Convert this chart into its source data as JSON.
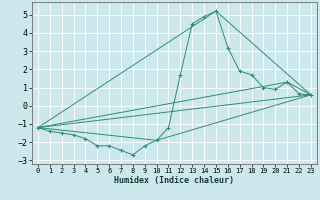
{
  "xlabel": "Humidex (Indice chaleur)",
  "xlim": [
    -0.5,
    23.5
  ],
  "ylim": [
    -3.2,
    5.7
  ],
  "yticks": [
    -3,
    -2,
    -1,
    0,
    1,
    2,
    3,
    4,
    5
  ],
  "xticks": [
    0,
    1,
    2,
    3,
    4,
    5,
    6,
    7,
    8,
    9,
    10,
    11,
    12,
    13,
    14,
    15,
    16,
    17,
    18,
    19,
    20,
    21,
    22,
    23
  ],
  "bg_color": "#cde8ec",
  "grid_color": "#ffffff",
  "line_color": "#2e8b78",
  "main_line": {
    "x": [
      0,
      1,
      2,
      3,
      4,
      5,
      6,
      7,
      8,
      9,
      10,
      11,
      12,
      13,
      14,
      15,
      16,
      17,
      18,
      19,
      20,
      21,
      22,
      23
    ],
    "y": [
      -1.2,
      -1.4,
      -1.5,
      -1.6,
      -1.8,
      -2.2,
      -2.2,
      -2.45,
      -2.7,
      -2.2,
      -1.9,
      -1.2,
      1.7,
      4.5,
      4.9,
      5.2,
      3.2,
      1.9,
      1.7,
      1.0,
      0.9,
      1.3,
      0.65,
      0.6
    ]
  },
  "trend_lines": [
    {
      "x": [
        0,
        23
      ],
      "y": [
        -1.2,
        0.6
      ]
    },
    {
      "x": [
        0,
        15,
        23
      ],
      "y": [
        -1.2,
        5.2,
        0.6
      ]
    },
    {
      "x": [
        0,
        21,
        23
      ],
      "y": [
        -1.2,
        1.3,
        0.6
      ]
    },
    {
      "x": [
        0,
        10,
        23
      ],
      "y": [
        -1.2,
        -1.9,
        0.6
      ]
    }
  ]
}
